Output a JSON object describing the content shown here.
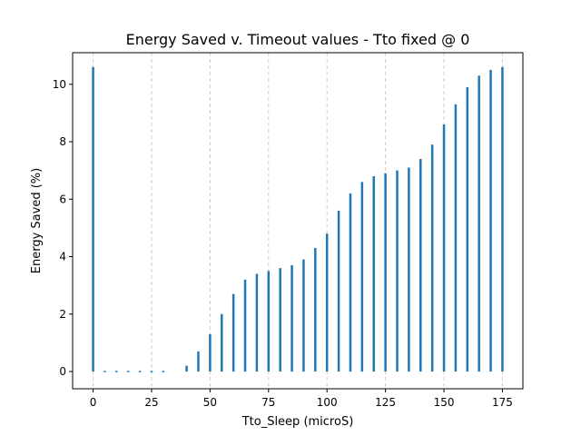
{
  "chart_data": {
    "type": "bar",
    "title": "Energy Saved v. Timeout values - Tto fixed @ 0",
    "xlabel": "Tto_Sleep (microS)",
    "ylabel": "Energy Saved (%)",
    "x": [
      0,
      5,
      10,
      15,
      20,
      25,
      30,
      35,
      40,
      45,
      50,
      55,
      60,
      65,
      70,
      75,
      80,
      85,
      90,
      95,
      100,
      105,
      110,
      115,
      120,
      125,
      130,
      135,
      140,
      145,
      150,
      155,
      160,
      165,
      170,
      175
    ],
    "values": [
      10.6,
      0.0,
      0.0,
      0.0,
      0.0,
      0.0,
      0.0,
      null,
      0.2,
      0.7,
      1.3,
      2.0,
      2.7,
      3.2,
      3.4,
      3.5,
      3.6,
      3.7,
      3.9,
      4.3,
      4.8,
      5.6,
      6.2,
      6.6,
      6.8,
      6.9,
      7.0,
      7.1,
      7.4,
      7.9,
      8.6,
      9.3,
      9.9,
      10.3,
      10.5,
      10.6
    ],
    "xlim": [
      -8.75,
      183.75
    ],
    "ylim": [
      -0.6,
      11.1
    ],
    "xticks": [
      0,
      25,
      50,
      75,
      100,
      125,
      150,
      175
    ],
    "xtick_labels": [
      "0",
      "25",
      "50",
      "75",
      "100",
      "125",
      "150",
      "175"
    ],
    "yticks": [
      0,
      2,
      4,
      6,
      8,
      10
    ],
    "ytick_labels": [
      "0",
      "2",
      "4",
      "6",
      "8",
      "10"
    ],
    "grid": "vertical dashed at x ticks",
    "bar_color": "#1f77b4",
    "grid_color": "#cccccc"
  }
}
